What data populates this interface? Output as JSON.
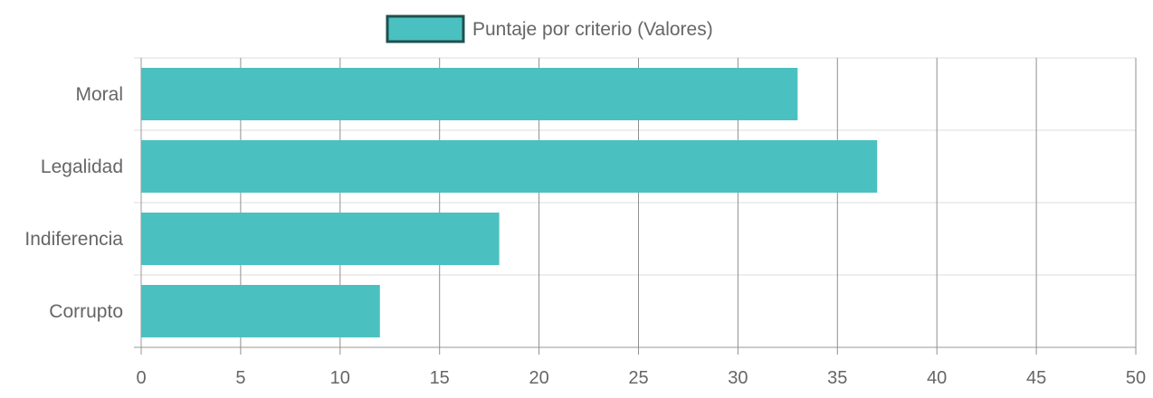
{
  "chart_data": {
    "type": "bar",
    "orientation": "horizontal",
    "categories": [
      "Moral",
      "Legalidad",
      "Indiferencia",
      "Corrupto"
    ],
    "series": [
      {
        "name": "Puntaje por criterio (Valores)",
        "values": [
          33,
          37,
          18,
          12
        ]
      }
    ],
    "xlim": [
      0,
      50
    ],
    "xticks": [
      "0",
      "5",
      "10",
      "15",
      "20",
      "25",
      "30",
      "35",
      "40",
      "45",
      "50"
    ],
    "grid": true,
    "legend_position": "top",
    "colors": {
      "bar_fill": "#4BC0C0",
      "legend_border": "#1F4F4F",
      "grid": "#dddddd",
      "axis": "#999999",
      "text": "#666666"
    }
  }
}
